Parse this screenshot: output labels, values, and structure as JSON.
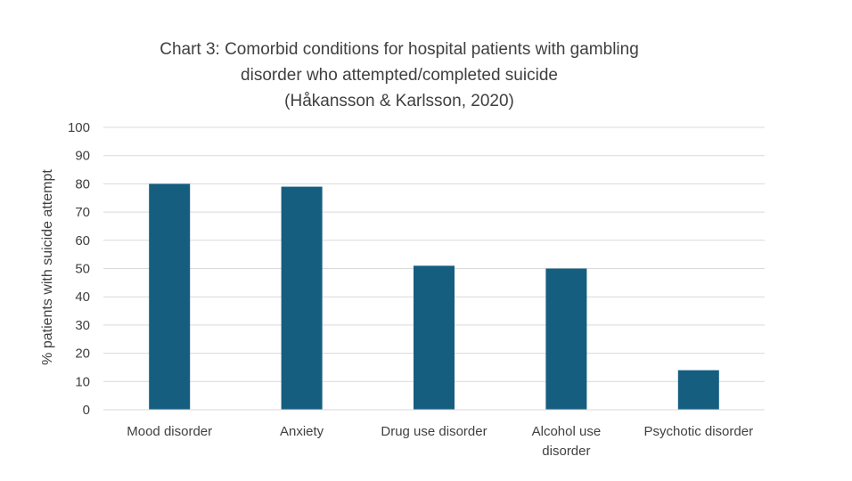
{
  "chart_data": {
    "type": "bar",
    "title_lines": [
      "Chart 3: Comorbid conditions for hospital patients with gambling",
      "disorder who attempted/completed suicide",
      "(Håkansson & Karlsson, 2020)"
    ],
    "xlabel": "",
    "ylabel": "% patients with suicide attempt",
    "categories": [
      [
        "Mood disorder"
      ],
      [
        "Anxiety"
      ],
      [
        "Drug use disorder"
      ],
      [
        "Alcohol use",
        "disorder"
      ],
      [
        "Psychotic disorder"
      ]
    ],
    "values": [
      80,
      79,
      51,
      50,
      14
    ],
    "ylim": [
      0,
      100
    ],
    "yticks": [
      0,
      10,
      20,
      30,
      40,
      50,
      60,
      70,
      80,
      90,
      100
    ],
    "grid": true,
    "legend": "none",
    "bar_color": "#155E80",
    "grid_color": "#D9D9D9"
  }
}
